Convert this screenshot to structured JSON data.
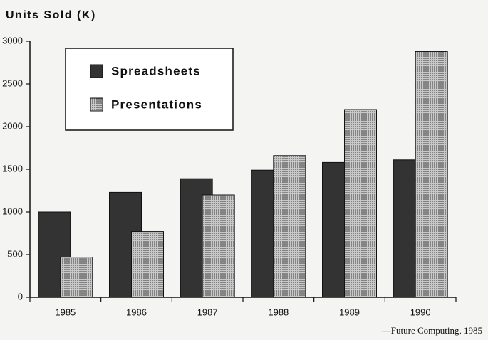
{
  "chart_data": {
    "type": "bar",
    "title": "Units Sold (K)",
    "source": "—Future Computing, 1985",
    "categories": [
      "1985",
      "1986",
      "1987",
      "1988",
      "1989",
      "1990"
    ],
    "series": [
      {
        "name": "Spreadsheets",
        "color": "#333333",
        "values": [
          1000,
          1230,
          1390,
          1490,
          1580,
          1610
        ]
      },
      {
        "name": "Presentations",
        "color": "#c8c8c8",
        "values": [
          470,
          770,
          1200,
          1660,
          2200,
          2880
        ]
      }
    ],
    "ylim": [
      0,
      3000
    ],
    "yticks": [
      0,
      500,
      1000,
      1500,
      2000,
      2500,
      3000
    ]
  }
}
